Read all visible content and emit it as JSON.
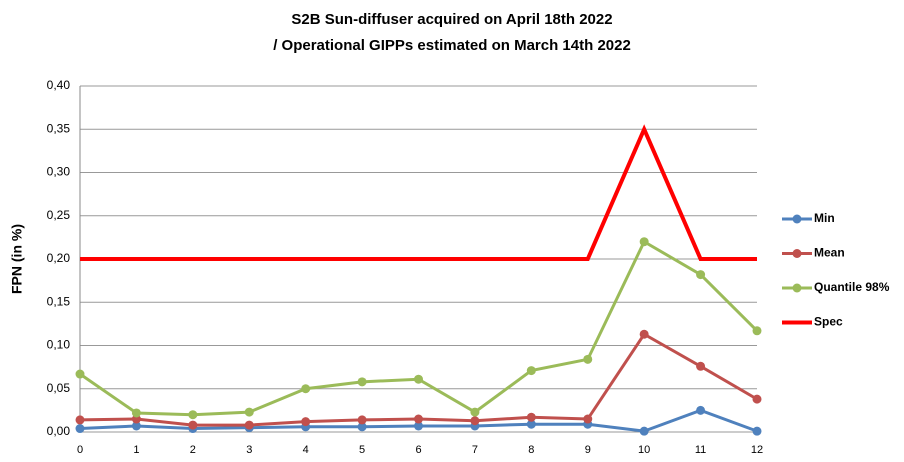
{
  "chart_data": {
    "type": "line",
    "title": [
      "S2B Sun-diffuser acquired on April 18th 2022",
      "/ Operational GIPPs estimated on March 14th 2022"
    ],
    "y_label": "FPN (in %)",
    "categories": [
      "0",
      "1",
      "2",
      "3",
      "4",
      "5",
      "6",
      "7",
      "8",
      "9",
      "10",
      "11",
      "12"
    ],
    "series": [
      {
        "name": "Min",
        "color": "#4f81bd",
        "marker": "circle",
        "values": [
          0.004,
          0.007,
          0.004,
          0.005,
          0.006,
          0.006,
          0.007,
          0.007,
          0.009,
          0.009,
          0.001,
          0.025,
          0.001
        ]
      },
      {
        "name": "Mean",
        "color": "#c0504d",
        "marker": "circle",
        "values": [
          0.014,
          0.015,
          0.008,
          0.008,
          0.012,
          0.014,
          0.015,
          0.013,
          0.017,
          0.015,
          0.113,
          0.076,
          0.038
        ]
      },
      {
        "name": "Quantile 98%",
        "color": "#9bbb59",
        "marker": "circle",
        "values": [
          0.067,
          0.022,
          0.02,
          0.023,
          0.05,
          0.058,
          0.061,
          0.023,
          0.071,
          0.084,
          0.22,
          0.182,
          0.117
        ]
      },
      {
        "name": "Spec",
        "color": "#ff0000",
        "marker": "none",
        "values": [
          0.2,
          0.2,
          0.2,
          0.2,
          0.2,
          0.2,
          0.2,
          0.2,
          0.2,
          0.2,
          0.35,
          0.2,
          0.2
        ]
      }
    ],
    "ylim": [
      0,
      0.4
    ],
    "yticks": [
      {
        "value": 0,
        "label": "0,00"
      },
      {
        "value": 0.05,
        "label": "0,05"
      },
      {
        "value": 0.1,
        "label": "0,10"
      },
      {
        "value": 0.15,
        "label": "0,15"
      },
      {
        "value": 0.2,
        "label": "0,20"
      },
      {
        "value": 0.25,
        "label": "0,25"
      },
      {
        "value": 0.3,
        "label": "0,30"
      },
      {
        "value": 0.35,
        "label": "0,35"
      },
      {
        "value": 0.4,
        "label": "0,40"
      }
    ],
    "grid": true,
    "legend": "right"
  }
}
